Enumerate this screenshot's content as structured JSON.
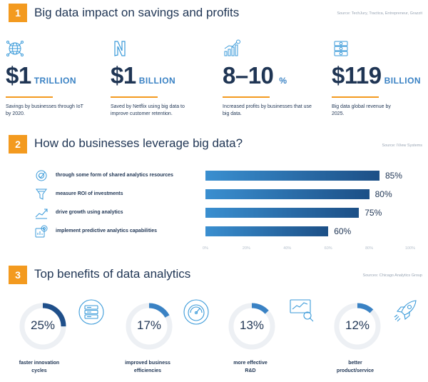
{
  "section1": {
    "number": "1",
    "title": "Big data impact on savings and profits",
    "source": "Source: TechJury, Tractica, Entrepreneur, Grazzit",
    "stats": [
      {
        "icon": "globe-network-icon",
        "value": "$1",
        "unit": "TRILLION",
        "desc": "Savings by businesses through IoT by 2020."
      },
      {
        "icon": "netflix-logo-icon",
        "value": "$1",
        "unit": "BILLION",
        "desc": "Saved by Netflix using big data to improve customer retention."
      },
      {
        "icon": "growth-chart-icon",
        "value": "8–10",
        "unit": "%",
        "desc": "Increased profits by businesses that use big data."
      },
      {
        "icon": "money-database-icon",
        "value": "$119",
        "unit": "BILLION",
        "desc": "Big data global revenue by 2025."
      }
    ]
  },
  "section2": {
    "number": "2",
    "title": "How do businesses leverage big data?",
    "source": "Source: IView Systems",
    "rows": [
      {
        "icon": "analytics-target-icon",
        "label": "through some form of shared analytics resources",
        "value": 85,
        "value_label": "85%"
      },
      {
        "icon": "roi-funnel-icon",
        "label": "measure ROI of investments",
        "value": 80,
        "value_label": "80%"
      },
      {
        "icon": "growth-trend-icon",
        "label": "drive growth using analytics",
        "value": 75,
        "value_label": "75%"
      },
      {
        "icon": "predictive-gear-icon",
        "label": "implement predictive analytics capabilities",
        "value": 60,
        "value_label": "60%"
      }
    ],
    "axis_ticks": [
      "0%",
      "20%",
      "40%",
      "60%",
      "80%",
      "100%"
    ]
  },
  "section3": {
    "number": "3",
    "title": "Top benefits of data analytics",
    "source": "Sources: Chicago Analytics Group",
    "benefits": [
      {
        "icon": "server-rack-icon",
        "value": 25,
        "value_label": "25%",
        "label_line1": "faster innovation",
        "label_line2": "cycles"
      },
      {
        "icon": "speedometer-icon",
        "value": 17,
        "value_label": "17%",
        "label_line1": "improved business",
        "label_line2": "efficiencies"
      },
      {
        "icon": "magnifier-chart-icon",
        "value": 13,
        "value_label": "13%",
        "label_line1": "more effective",
        "label_line2": "R&D"
      },
      {
        "icon": "rocket-icon",
        "value": 12,
        "value_label": "12%",
        "label_line1": "better",
        "label_line2": "product/service"
      }
    ]
  },
  "colors": {
    "accent": "#f39a1f",
    "navy": "#1f3554",
    "blue": "#3a82c4",
    "ring": "#edf0f4",
    "icon": "#3a9ad9"
  }
}
